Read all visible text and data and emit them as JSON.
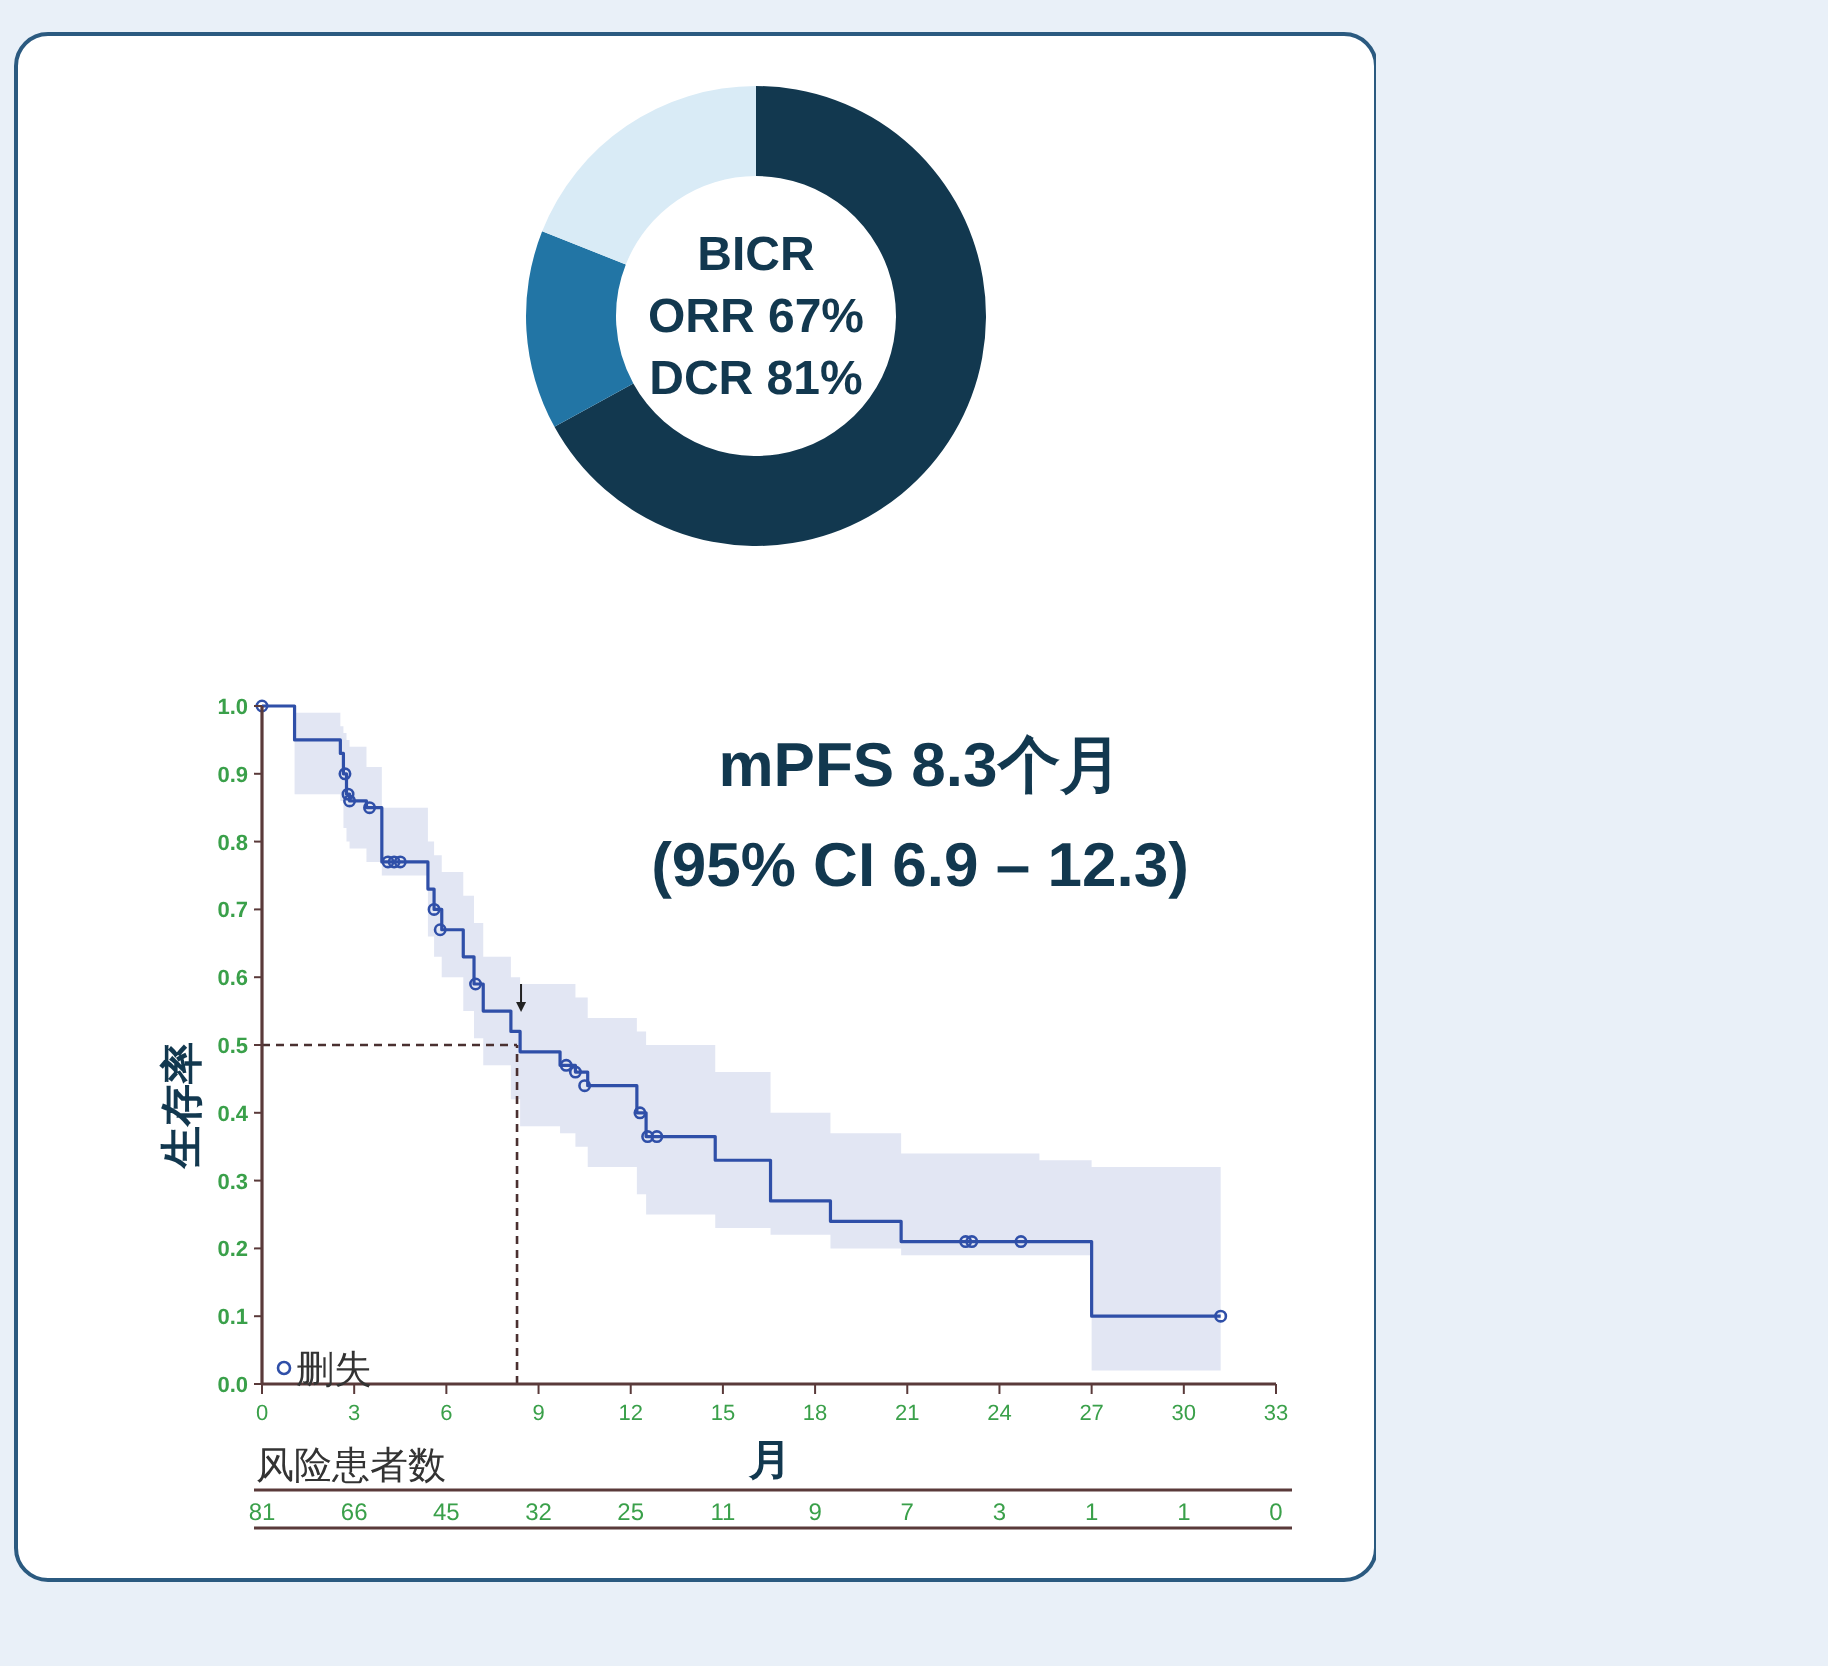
{
  "chart_data": [
    {
      "type": "donut",
      "categories": [
        null,
        null,
        null
      ],
      "values": [
        67,
        14,
        19
      ],
      "colors": [
        "#12384f",
        "#2275a5",
        "#d9ebf6"
      ],
      "annotations": [
        "BICR",
        "ORR 67%",
        "DCR 81%"
      ]
    },
    {
      "type": "step",
      "title": "mPFS 8.3个月",
      "subtitle": "(95% CI 6.9 – 12.3)",
      "xlabel": "月",
      "ylabel": "生存率",
      "xlim": [
        0,
        33
      ],
      "ylim": [
        0,
        1
      ],
      "xticks": [
        0,
        3,
        6,
        9,
        12,
        15,
        18,
        21,
        24,
        27,
        30,
        33
      ],
      "yticks": [
        {
          "value": 0,
          "label": "0.0"
        },
        0.1,
        0.2,
        0.3,
        0.4,
        0.5,
        0.6,
        0.7,
        0.8,
        0.9,
        {
          "value": 1,
          "label": "1.0"
        }
      ],
      "legend": "bottom left",
      "series": [
        {
          "type": "step",
          "color": "#2f4fa8",
          "x": [
            0,
            1.06,
            2.55,
            2.65,
            2.75,
            2.85,
            3.4,
            3.9,
            5.4,
            5.6,
            5.85,
            6.55,
            6.9,
            7.2,
            8.1,
            8.4,
            9.7,
            10.2,
            10.6,
            12.2,
            12.5,
            14.75,
            16.55,
            18.5,
            20.8,
            25.3,
            27.0,
            31.2
          ],
          "values": [
            1.0,
            0.95,
            0.93,
            0.9,
            0.87,
            0.86,
            0.85,
            0.77,
            0.73,
            0.7,
            0.67,
            0.63,
            0.59,
            0.55,
            0.52,
            0.49,
            0.47,
            0.46,
            0.44,
            0.4,
            0.365,
            0.33,
            0.27,
            0.24,
            0.21,
            0.21,
            0.1,
            0.1
          ],
          "lower": [
            1.0,
            0.87,
            0.86,
            0.82,
            0.8,
            0.79,
            0.77,
            0.75,
            0.66,
            0.63,
            0.6,
            0.55,
            0.51,
            0.47,
            0.42,
            0.38,
            0.37,
            0.35,
            0.32,
            0.28,
            0.25,
            0.23,
            0.22,
            0.2,
            0.19,
            0.19,
            0.02,
            0.02
          ],
          "upper": [
            1.0,
            0.99,
            0.97,
            0.96,
            0.95,
            0.94,
            0.91,
            0.85,
            0.8,
            0.78,
            0.755,
            0.72,
            0.68,
            0.63,
            0.6,
            0.59,
            0.59,
            0.57,
            0.54,
            0.52,
            0.5,
            0.46,
            0.4,
            0.37,
            0.34,
            0.33,
            0.32,
            0.32
          ]
        },
        {
          "type": "scatter",
          "name": "删失",
          "color": "#2f4fa8",
          "marker": "circle",
          "x": [
            0,
            2.7,
            2.8,
            2.85,
            3.5,
            4.1,
            4.3,
            4.5,
            5.6,
            5.8,
            6.95,
            9.9,
            10.2,
            10.5,
            12.3,
            12.55,
            12.85,
            22.9,
            23.1,
            24.7,
            31.2
          ],
          "values": [
            1.0,
            0.9,
            0.87,
            0.86,
            0.85,
            0.77,
            0.77,
            0.77,
            0.7,
            0.67,
            0.59,
            0.47,
            0.46,
            0.44,
            0.4,
            0.365,
            0.365,
            0.21,
            0.21,
            0.21,
            0.1
          ]
        }
      ],
      "ref_lines": [
        {
          "axis": "y",
          "value": 0.5,
          "line_style": "dashed",
          "color": "#4a3030"
        },
        {
          "axis": "x",
          "value": 8.3,
          "line_style": "dashed",
          "color": "#4a3030"
        }
      ],
      "annotations": [
        "风险患者数",
        "81",
        "66",
        "45",
        "32",
        "25",
        "11",
        "9",
        "7",
        "3",
        "1",
        "1",
        "0"
      ]
    }
  ]
}
